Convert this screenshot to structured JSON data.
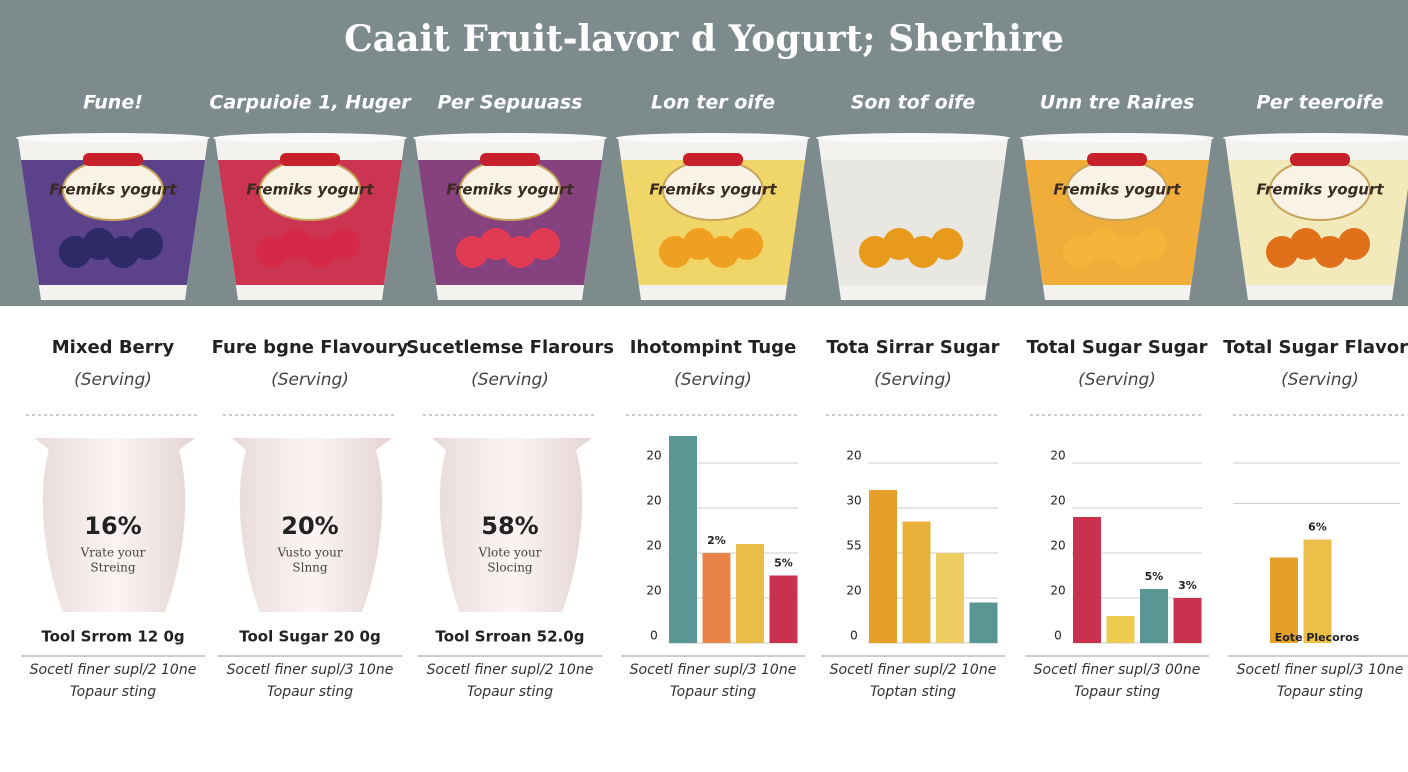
{
  "title": "Caait Fruit-lavor d Yogurt; Sherhire",
  "products": [
    {
      "label": "Fune!",
      "brand": "Fremiks yogurt",
      "color": "#4b2f7f",
      "fruit": "#2e2a66"
    },
    {
      "label": "Carpuioie 1, Huger",
      "brand": "Fremiks yogurt",
      "color": "#c8203f",
      "fruit": "#d42a48"
    },
    {
      "label": "Per Sepuuass",
      "brand": "Fremiks yogurt",
      "color": "#7a2f72",
      "fruit": "#e03a55"
    },
    {
      "label": "Lon ter oife",
      "brand": "Fremiks yogurt",
      "color": "#f0d25a",
      "fruit": "#f0a020"
    },
    {
      "label": "Son tof oife",
      "color": "#e8e6e0",
      "fruit": "#e89a1a"
    },
    {
      "label": "Unn tre Raires",
      "brand": "Fremiks yogurt",
      "color": "#f0a526",
      "fruit": "#f5b53a"
    },
    {
      "label": "Per teeroife",
      "brand": "Fremiks yogurt",
      "color": "#f3e9b5",
      "fruit": "#e0701a"
    }
  ],
  "panels": [
    {
      "heading": "Mixed Berry",
      "serving": "(Serving)",
      "percent": "16%",
      "caption": [
        "Vrate your",
        "Streing"
      ],
      "total": "Tool Srrom 12 0g",
      "footer": [
        "Socetl finer supl/2 10ne",
        "Topaur sting"
      ]
    },
    {
      "heading": "Fure bgne Flavoury",
      "serving": "(Serving)",
      "percent": "20%",
      "caption": [
        "Vusto your",
        "Slnng"
      ],
      "total": "Tool Sugar 20 0g",
      "footer": [
        "Socetl finer supl/3 10ne",
        "Topaur sting"
      ]
    },
    {
      "heading": "Sucetlemse Flarours",
      "serving": "(Serving)",
      "percent": "58%",
      "caption": [
        "Vlote your",
        "Slocing"
      ],
      "total": "Tool Srroan 52.0g",
      "footer": [
        "Socetl finer supl/2 10ne",
        "Topaur sting"
      ]
    },
    {
      "heading": "Ihotompint Tuge",
      "serving": "(Serving)",
      "ylim": [
        0,
        48
      ],
      "yticks": [
        {
          "value": 40,
          "label": "20"
        },
        {
          "value": 30,
          "label": "20"
        },
        {
          "value": 20,
          "label": "20"
        },
        {
          "value": 10,
          "label": "20"
        },
        0
      ],
      "bars": [
        {
          "value": 46,
          "color": "#5a9694"
        },
        {
          "value": 20,
          "color": "#e8844a",
          "label": "2%"
        },
        {
          "value": 22,
          "color": "#e9bd48"
        },
        {
          "value": 15,
          "color": "#c8324f",
          "label": "5%"
        }
      ],
      "footer": [
        "Socetl finer supl/3 10ne",
        "Topaur sting"
      ]
    },
    {
      "heading": "Tota Sirrar Sugar",
      "serving": "(Serving)",
      "ylim": [
        0,
        48
      ],
      "yticks": [
        {
          "value": 40,
          "label": "20"
        },
        30,
        {
          "value": 20,
          "label": "55"
        },
        {
          "value": 10,
          "label": "20"
        },
        0
      ],
      "bars": [
        {
          "value": 34,
          "color": "#e6a02a"
        },
        {
          "value": 27,
          "color": "#e9b03a"
        },
        {
          "value": 20,
          "color": "#edcc62"
        },
        {
          "value": 9,
          "color": "#5a9694"
        }
      ],
      "footer": [
        "Socetl finer supl/2 10ne",
        "Toptan sting"
      ]
    },
    {
      "heading": "Total Sugar Sugar",
      "serving": "(Serving)",
      "ylim": [
        0,
        48
      ],
      "yticks": [
        {
          "value": 40,
          "label": "20"
        },
        {
          "value": 30,
          "label": "20"
        },
        20,
        {
          "value": 10,
          "label": "20"
        },
        0
      ],
      "bars": [
        {
          "value": 28,
          "color": "#c8324f"
        },
        {
          "value": 6,
          "color": "#edcc50"
        },
        {
          "value": 12,
          "color": "#5a9694",
          "label": "5%"
        },
        {
          "value": 10,
          "color": "#c8324f",
          "label": "3%"
        }
      ],
      "footer": [
        "Socetl finer supl/3 00ne",
        "Topaur sting"
      ]
    },
    {
      "heading": "Total Sugar Flavorr",
      "serving": "(Serving)",
      "ylim": [
        0,
        48
      ],
      "grid": [
        40,
        31
      ],
      "bars": [
        {
          "value": 19,
          "color": "#e6a02a"
        },
        {
          "value": 23,
          "color": "#ecbf48",
          "label": "6%"
        }
      ],
      "note": "Eote Plecoros",
      "footer": [
        "Socetl finer supl/3 10ne",
        "Topaur sting"
      ]
    }
  ]
}
